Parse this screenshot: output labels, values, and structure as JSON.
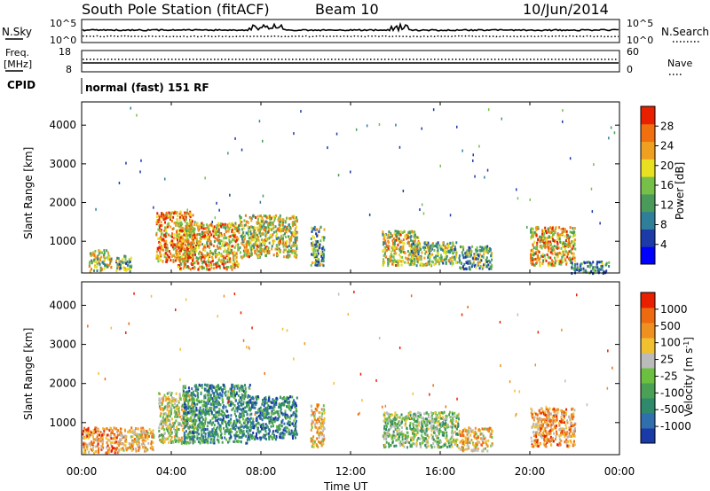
{
  "header": {
    "station": "South Pole Station (fitACF)",
    "beam": "Beam 10",
    "date": "10/Jun/2014"
  },
  "noise_panel": {
    "left_label": "N.Sky",
    "right_label": "N.Search",
    "ticks_left": [
      "10^5",
      "10^0"
    ],
    "ticks_right": [
      "10^5",
      "10^0"
    ]
  },
  "freq_panel": {
    "left_label_1": "Freq.",
    "left_label_2": "[MHz]",
    "right_label": "Nave",
    "ticks_left": [
      "18",
      "8"
    ],
    "ticks_right": [
      "60",
      "0"
    ]
  },
  "cpid": {
    "label": "CPID",
    "value": "normal (fast) 151 RF"
  },
  "x_axis": {
    "label": "Time UT",
    "ticks": [
      "00:00",
      "04:00",
      "08:00",
      "12:00",
      "16:00",
      "20:00",
      "00:00"
    ]
  },
  "colors": {
    "power_scale": [
      "#0000ff",
      "#1c3aa8",
      "#2f7f9a",
      "#4a9a5a",
      "#76c04a",
      "#e8e020",
      "#f0a020",
      "#f07010",
      "#e82000"
    ],
    "velocity_scale": [
      "#1a3aa8",
      "#2f6fae",
      "#2e8a6a",
      "#4aa055",
      "#6cc040",
      "#bbbbbb",
      "#f0c030",
      "#f09020",
      "#ee6a10",
      "#e82000"
    ]
  },
  "chart_data": [
    {
      "type": "heatmap",
      "title": "",
      "xlabel": "",
      "ylabel": "Slant Range [km]",
      "ylim": [
        180,
        4600
      ],
      "yticks": [
        "1000",
        "2000",
        "3000",
        "4000"
      ],
      "colorbar": {
        "label": "Power [dB]",
        "range": [
          0,
          32
        ],
        "ticks": [
          "4",
          "8",
          "12",
          "16",
          "20",
          "24",
          "28"
        ]
      },
      "blobs": [
        {
          "t": [
            0.3,
            1.3
          ],
          "r": [
            250,
            800
          ],
          "level": 0.55
        },
        {
          "t": [
            1.5,
            2.2
          ],
          "r": [
            250,
            650
          ],
          "level": 0.45
        },
        {
          "t": [
            3.3,
            5.0
          ],
          "r": [
            500,
            1800
          ],
          "level": 0.78
        },
        {
          "t": [
            4.2,
            7.0
          ],
          "r": [
            300,
            1500
          ],
          "level": 0.72
        },
        {
          "t": [
            7.0,
            9.6
          ],
          "r": [
            600,
            1700
          ],
          "level": 0.6
        },
        {
          "t": [
            10.2,
            10.8
          ],
          "r": [
            400,
            1400
          ],
          "level": 0.4
        },
        {
          "t": [
            13.4,
            15.0
          ],
          "r": [
            400,
            1300
          ],
          "level": 0.62
        },
        {
          "t": [
            14.6,
            16.7
          ],
          "r": [
            400,
            1000
          ],
          "level": 0.5
        },
        {
          "t": [
            16.8,
            18.3
          ],
          "r": [
            300,
            900
          ],
          "level": 0.4
        },
        {
          "t": [
            20.0,
            22.0
          ],
          "r": [
            400,
            1400
          ],
          "level": 0.68
        },
        {
          "t": [
            21.8,
            23.5
          ],
          "r": [
            200,
            500
          ],
          "level": 0.25
        }
      ]
    },
    {
      "type": "heatmap",
      "title": "",
      "xlabel": "Time UT",
      "ylabel": "Slant Range [km]",
      "ylim": [
        180,
        4600
      ],
      "yticks": [
        "1000",
        "2000",
        "3000",
        "4000"
      ],
      "colorbar": {
        "label": "Velocity [m s^-1]",
        "ticks": [
          "1000",
          "500",
          "100",
          "25",
          "-25",
          "-100",
          "-500",
          "-1000"
        ]
      },
      "blobs": [
        {
          "t": [
            0.0,
            1.6
          ],
          "r": [
            250,
            900
          ],
          "level": 0.2
        },
        {
          "t": [
            1.6,
            3.2
          ],
          "r": [
            300,
            900
          ],
          "level": 0.3
        },
        {
          "t": [
            3.4,
            5.0
          ],
          "r": [
            500,
            1800
          ],
          "level": 0.45
        },
        {
          "t": [
            4.5,
            7.5
          ],
          "r": [
            500,
            2000
          ],
          "level": 0.75
        },
        {
          "t": [
            7.5,
            9.6
          ],
          "r": [
            600,
            1700
          ],
          "level": 0.8
        },
        {
          "t": [
            10.2,
            10.8
          ],
          "r": [
            400,
            1500
          ],
          "level": 0.35
        },
        {
          "t": [
            13.4,
            16.8
          ],
          "r": [
            400,
            1300
          ],
          "level": 0.55
        },
        {
          "t": [
            16.8,
            18.3
          ],
          "r": [
            300,
            900
          ],
          "level": 0.3
        },
        {
          "t": [
            20.0,
            22.0
          ],
          "r": [
            400,
            1400
          ],
          "level": 0.25
        }
      ]
    }
  ]
}
